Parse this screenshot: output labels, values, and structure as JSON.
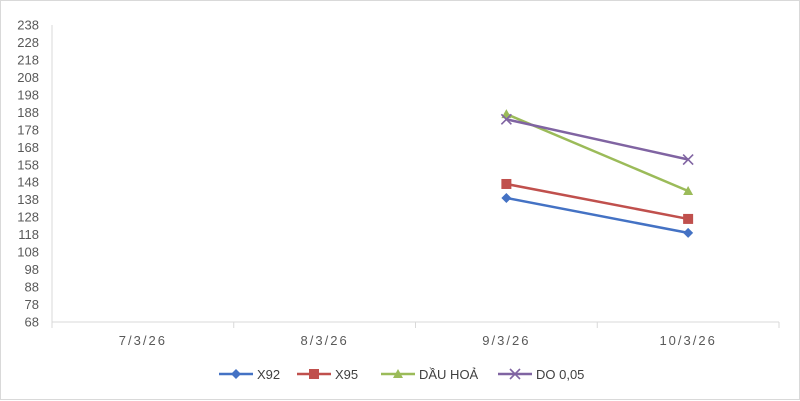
{
  "chart_data": {
    "type": "line",
    "title": "",
    "xlabel": "",
    "ylabel": "",
    "categories": [
      "7/3/26",
      "8/3/26",
      "9/3/26",
      "10/3/26"
    ],
    "ylim": [
      68,
      238
    ],
    "yticks": [
      68,
      78,
      88,
      98,
      108,
      118,
      128,
      138,
      148,
      158,
      168,
      178,
      188,
      198,
      208,
      218,
      228,
      238
    ],
    "grid": false,
    "legend_position": "bottom",
    "series": [
      {
        "name": "X92",
        "color": "#4472C4",
        "marker": "diamond",
        "values": [
          null,
          null,
          139,
          119
        ]
      },
      {
        "name": "X95",
        "color": "#C0504D",
        "marker": "square",
        "values": [
          null,
          null,
          147,
          127
        ]
      },
      {
        "name": "DẦU HOẢ",
        "color": "#9BBB59",
        "marker": "triangle",
        "values": [
          null,
          null,
          187,
          143
        ]
      },
      {
        "name": "DO 0,05",
        "color": "#8064A2",
        "marker": "x",
        "values": [
          null,
          null,
          184,
          161
        ]
      }
    ]
  }
}
